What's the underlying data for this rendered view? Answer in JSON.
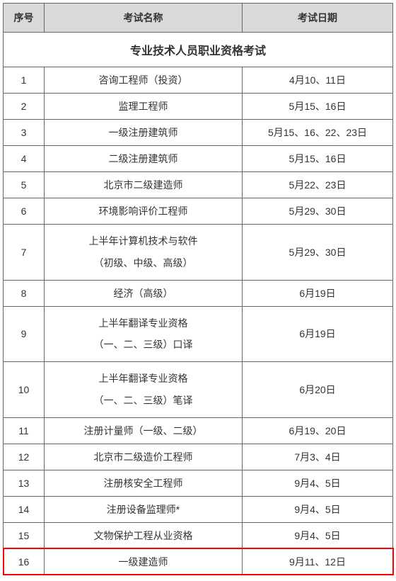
{
  "table": {
    "headers": {
      "seq": "序号",
      "name": "考试名称",
      "date": "考试日期"
    },
    "section_title": "专业技术人员职业资格考试",
    "rows": [
      {
        "seq": "1",
        "name": "咨询工程师（投资）",
        "date": "4月10、11日",
        "highlight": false
      },
      {
        "seq": "2",
        "name": "监理工程师",
        "date": "5月15、16日",
        "highlight": false
      },
      {
        "seq": "3",
        "name": "一级注册建筑师",
        "date": "5月15、16、22、23日",
        "highlight": false
      },
      {
        "seq": "4",
        "name": "二级注册建筑师",
        "date": "5月15、16日",
        "highlight": false
      },
      {
        "seq": "5",
        "name": "北京市二级建造师",
        "date": "5月22、23日",
        "highlight": false
      },
      {
        "seq": "6",
        "name": "环境影响评价工程师",
        "date": "5月29、30日",
        "highlight": false
      },
      {
        "seq": "7",
        "name": "上半年计算机技术与软件\n（初级、中级、高级）",
        "date": "5月29、30日",
        "highlight": false,
        "multiline": true
      },
      {
        "seq": "8",
        "name": "经济（高级）",
        "date": "6月19日",
        "highlight": false
      },
      {
        "seq": "9",
        "name": "上半年翻译专业资格\n（一、二、三级）口译",
        "date": "6月19日",
        "highlight": false,
        "multiline": true
      },
      {
        "seq": "10",
        "name": "上半年翻译专业资格\n（一、二、三级）笔译",
        "date": "6月20日",
        "highlight": false,
        "multiline": true
      },
      {
        "seq": "11",
        "name": "注册计量师（一级、二级）",
        "date": "6月19、20日",
        "highlight": false
      },
      {
        "seq": "12",
        "name": "北京市二级造价工程师",
        "date": "7月3、4日",
        "highlight": false
      },
      {
        "seq": "13",
        "name": "注册核安全工程师",
        "date": "9月4、5日",
        "highlight": false
      },
      {
        "seq": "14",
        "name": "注册设备监理师*",
        "date": "9月4、5日",
        "highlight": false
      },
      {
        "seq": "15",
        "name": "文物保护工程从业资格",
        "date": "9月4、5日",
        "highlight": false
      },
      {
        "seq": "16",
        "name": "一级建造师",
        "date": "9月11、12日",
        "highlight": true
      }
    ],
    "highlight_color": "#ff0000",
    "header_bg": "#d9d9d9",
    "border_color": "#666666",
    "text_color": "#333333",
    "font_size_cell": 14,
    "font_size_section": 16
  }
}
